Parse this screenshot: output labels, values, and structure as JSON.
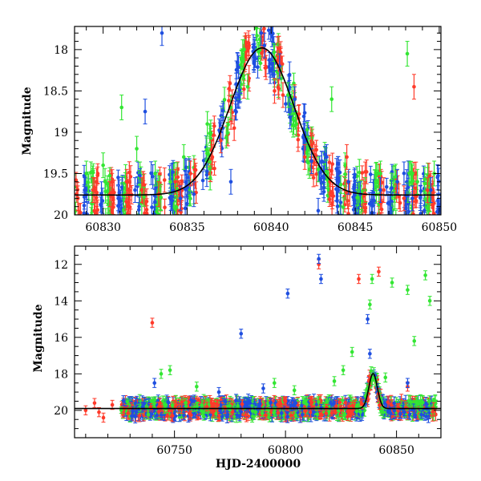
{
  "chart_data": [
    {
      "type": "scatter",
      "xlabel": "",
      "ylabel": "Magnitude",
      "xlim": [
        60828.3,
        60850.1
      ],
      "ylim": [
        20.0,
        17.72
      ],
      "y_inverted": true,
      "grid": false,
      "x_ticks": [
        "60830",
        "60835",
        "60840",
        "60845",
        "60850"
      ],
      "y_ticks": [
        "18",
        "18.5",
        "19",
        "19.5",
        "20"
      ],
      "colors": {
        "green": "#33e633",
        "blue": "#1f4fe0",
        "red": "#ff3a2a",
        "model": "#000000"
      },
      "model_curve": {
        "baseline": 19.76,
        "peak_x": 60839.45,
        "peak_y": 17.98,
        "width_days": 1.9
      },
      "series": [
        {
          "color": "green",
          "points": [
            [
              60829.0,
              19.5
            ],
            [
              60830.0,
              19.4
            ],
            [
              60831.1,
              18.7
            ],
            [
              60832.0,
              19.2
            ],
            [
              60833.1,
              19.5
            ],
            [
              60834.0,
              19.6
            ],
            [
              60834.8,
              19.3
            ],
            [
              60836.2,
              18.9
            ],
            [
              60837.6,
              18.7
            ],
            [
              60838.6,
              18.45
            ],
            [
              60840.2,
              18.1
            ],
            [
              60840.6,
              18.35
            ],
            [
              60841.0,
              18.55
            ],
            [
              60841.5,
              18.9
            ],
            [
              60842.2,
              19.2
            ],
            [
              60842.8,
              19.45
            ],
            [
              60843.6,
              18.6
            ],
            [
              60844.4,
              19.4
            ],
            [
              60845.6,
              19.7
            ],
            [
              60846.5,
              19.5
            ],
            [
              60848.1,
              18.05
            ],
            [
              60848.7,
              19.6
            ],
            [
              60849.7,
              19.5
            ]
          ]
        },
        {
          "color": "blue",
          "points": [
            [
              60828.9,
              19.7
            ],
            [
              60829.9,
              19.75
            ],
            [
              60830.9,
              19.8
            ],
            [
              60831.9,
              19.7
            ],
            [
              60832.5,
              18.75
            ],
            [
              60833.5,
              17.8
            ],
            [
              60834.6,
              19.8
            ],
            [
              60835.4,
              19.75
            ],
            [
              60837.6,
              19.6
            ],
            [
              60839.4,
              17.8
            ],
            [
              60839.6,
              17.95
            ],
            [
              60840.2,
              18.4
            ],
            [
              60840.5,
              18.2
            ],
            [
              60841.4,
              18.6
            ],
            [
              60841.9,
              19.2
            ],
            [
              60842.4,
              19.35
            ],
            [
              60842.8,
              19.95
            ],
            [
              60843.3,
              19.3
            ],
            [
              60844.6,
              19.6
            ],
            [
              60845.3,
              19.75
            ],
            [
              60846.5,
              19.7
            ],
            [
              60847.5,
              19.6
            ],
            [
              60848.4,
              19.8
            ],
            [
              60849.5,
              19.7
            ]
          ]
        },
        {
          "color": "red",
          "points": [
            [
              60828.5,
              19.8
            ],
            [
              60829.4,
              19.7
            ],
            [
              60830.4,
              19.75
            ],
            [
              60831.4,
              19.6
            ],
            [
              60832.3,
              19.7
            ],
            [
              60833.3,
              19.75
            ],
            [
              60834.3,
              19.6
            ],
            [
              60835.2,
              19.5
            ],
            [
              60836.5,
              19.3
            ],
            [
              60837.0,
              19.1
            ],
            [
              60837.8,
              18.95
            ],
            [
              60840.2,
              18.5
            ],
            [
              60840.7,
              18.55
            ],
            [
              60842.0,
              19.3
            ],
            [
              60843.5,
              19.6
            ],
            [
              60844.5,
              19.3
            ],
            [
              60845.6,
              19.75
            ],
            [
              60846.7,
              19.7
            ],
            [
              60847.9,
              19.8
            ],
            [
              60848.5,
              18.45
            ],
            [
              60849.3,
              19.7
            ]
          ]
        }
      ]
    },
    {
      "type": "scatter",
      "xlabel": "HJD-2400000",
      "ylabel": "Magnitude",
      "xlim": [
        60705,
        60870
      ],
      "ylim": [
        21.5,
        11.0
      ],
      "y_inverted": true,
      "grid": false,
      "x_ticks": [
        "60750",
        "60800",
        "60850"
      ],
      "y_ticks": [
        "12",
        "14",
        "16",
        "18",
        "20"
      ],
      "colors": {
        "green": "#33e633",
        "blue": "#1f4fe0",
        "red": "#ff3a2a",
        "model": "#000000"
      },
      "model_curve": {
        "baseline": 19.9,
        "peak_x": 60839.45,
        "peak_y": 17.98,
        "width_days": 1.9
      },
      "series": [
        {
          "color": "red",
          "points": [
            [
              60710,
              20.0
            ],
            [
              60714,
              19.6
            ],
            [
              60716,
              20.1
            ],
            [
              60718,
              20.4
            ],
            [
              60722,
              19.7
            ],
            [
              60740,
              15.2
            ],
            [
              60815,
              12.0
            ],
            [
              60833,
              12.8
            ],
            [
              60842,
              12.4
            ],
            [
              60752,
              19.9
            ],
            [
              60800,
              19.5
            ],
            [
              60855,
              18.7
            ]
          ]
        },
        {
          "color": "blue",
          "points": [
            [
              60741,
              18.5
            ],
            [
              60780,
              15.8
            ],
            [
              60801,
              13.6
            ],
            [
              60815,
              11.7
            ],
            [
              60816,
              12.8
            ],
            [
              60837,
              15.0
            ],
            [
              60838,
              16.9
            ],
            [
              60855,
              18.5
            ],
            [
              60770,
              19.0
            ],
            [
              60790,
              18.8
            ]
          ]
        },
        {
          "color": "green",
          "points": [
            [
              60744,
              18.0
            ],
            [
              60748,
              17.8
            ],
            [
              60804,
              18.9
            ],
            [
              60822,
              18.4
            ],
            [
              60826,
              17.8
            ],
            [
              60830,
              16.8
            ],
            [
              60838,
              14.2
            ],
            [
              60839,
              12.8
            ],
            [
              60845,
              18.2
            ],
            [
              60848,
              13.0
            ],
            [
              60855,
              13.4
            ],
            [
              60858,
              16.2
            ],
            [
              60863,
              12.6
            ],
            [
              60865,
              14.0
            ],
            [
              60760,
              18.7
            ],
            [
              60795,
              18.5
            ]
          ]
        }
      ],
      "dense_band": {
        "x_start": 60726,
        "x_end": 60868,
        "baseline": 19.9,
        "spread": 0.45
      }
    }
  ]
}
